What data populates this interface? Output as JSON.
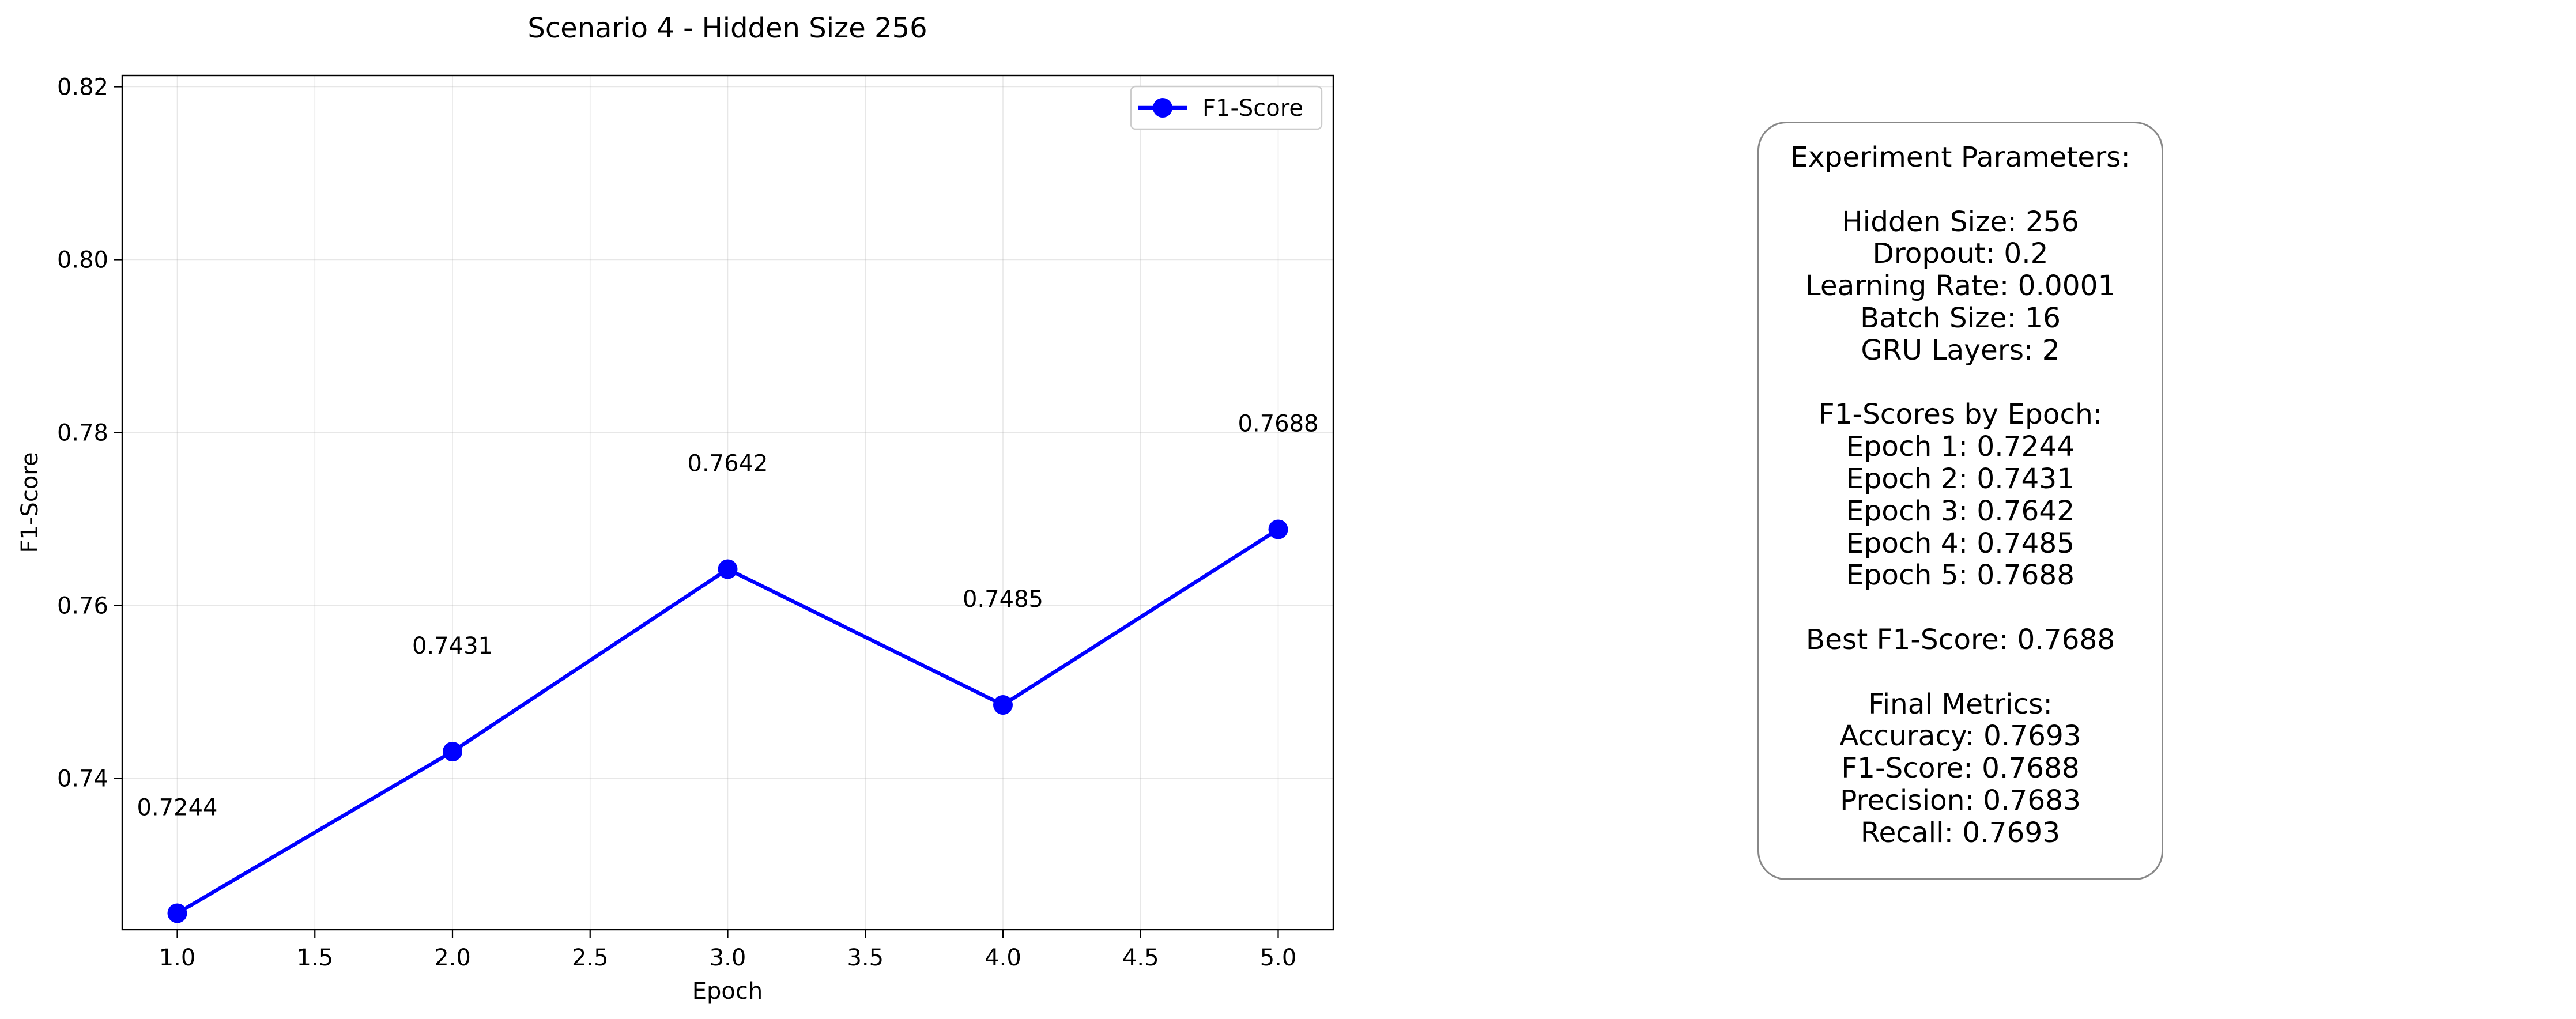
{
  "chart_data": {
    "type": "line",
    "title": "Scenario 4 - Hidden Size 256",
    "xlabel": "Epoch",
    "ylabel": "F1-Score",
    "xlim": [
      0.8,
      5.2
    ],
    "ylim": [
      0.7225,
      0.8213
    ],
    "xticks": [
      "1.0",
      "1.5",
      "2.0",
      "2.5",
      "3.0",
      "3.5",
      "4.0",
      "4.5",
      "5.0"
    ],
    "yticks": [
      "0.74",
      "0.76",
      "0.78",
      "0.80",
      "0.82"
    ],
    "grid": true,
    "legend": "top-right",
    "series": [
      {
        "name": "F1-Score",
        "color": "#0000ff",
        "marker": "circle",
        "x": [
          1,
          2,
          3,
          4,
          5
        ],
        "y": [
          0.7244,
          0.7431,
          0.7642,
          0.7485,
          0.7688
        ],
        "labels": [
          "0.7244",
          "0.7431",
          "0.7642",
          "0.7485",
          "0.7688"
        ]
      }
    ]
  },
  "info_box": {
    "lines": [
      "Experiment Parameters:",
      "",
      "Hidden Size: 256",
      "Dropout: 0.2",
      "Learning Rate: 0.0001",
      "Batch Size: 16",
      "GRU Layers: 2",
      "",
      "F1-Scores by Epoch:",
      "Epoch 1: 0.7244",
      "Epoch 2: 0.7431",
      "Epoch 3: 0.7642",
      "Epoch 4: 0.7485",
      "Epoch 5: 0.7688",
      "",
      "Best F1-Score: 0.7688",
      "",
      "Final Metrics:",
      "Accuracy: 0.7693",
      "F1-Score: 0.7688",
      "Precision: 0.7683",
      "Recall: 0.7693"
    ]
  }
}
